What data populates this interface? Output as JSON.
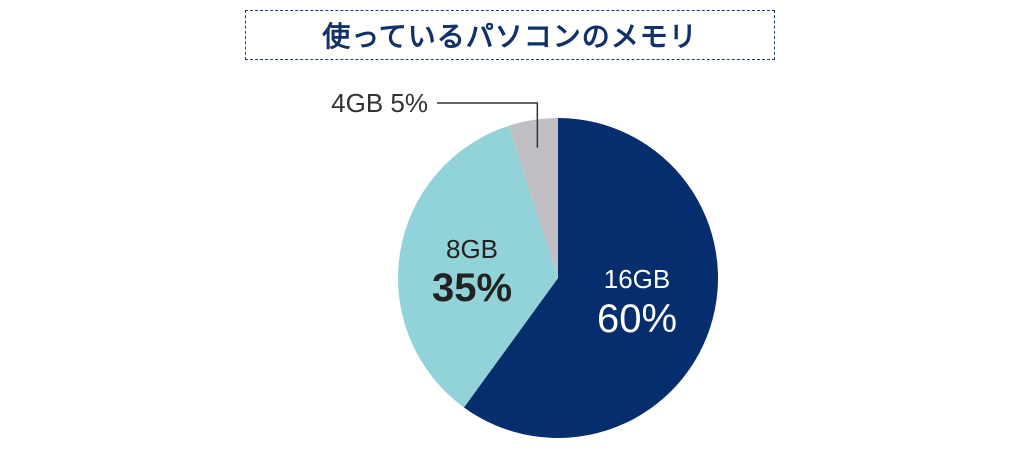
{
  "chart_data": {
    "type": "pie",
    "title": "使っているパソコンのメモリ",
    "slices": [
      {
        "label": "16GB",
        "value": 60,
        "pct_label": "60%",
        "color": "#062d6e",
        "text_color": "#ffffff"
      },
      {
        "label": "8GB",
        "value": 35,
        "pct_label": "35%",
        "color": "#92d3d9",
        "text_color": "#222222"
      },
      {
        "label": "4GB",
        "value": 5,
        "pct_label": "5%",
        "color": "#c0c0c4",
        "text_color": "#333333"
      }
    ],
    "start_angle": "top",
    "direction": "clockwise",
    "legend": "none"
  }
}
